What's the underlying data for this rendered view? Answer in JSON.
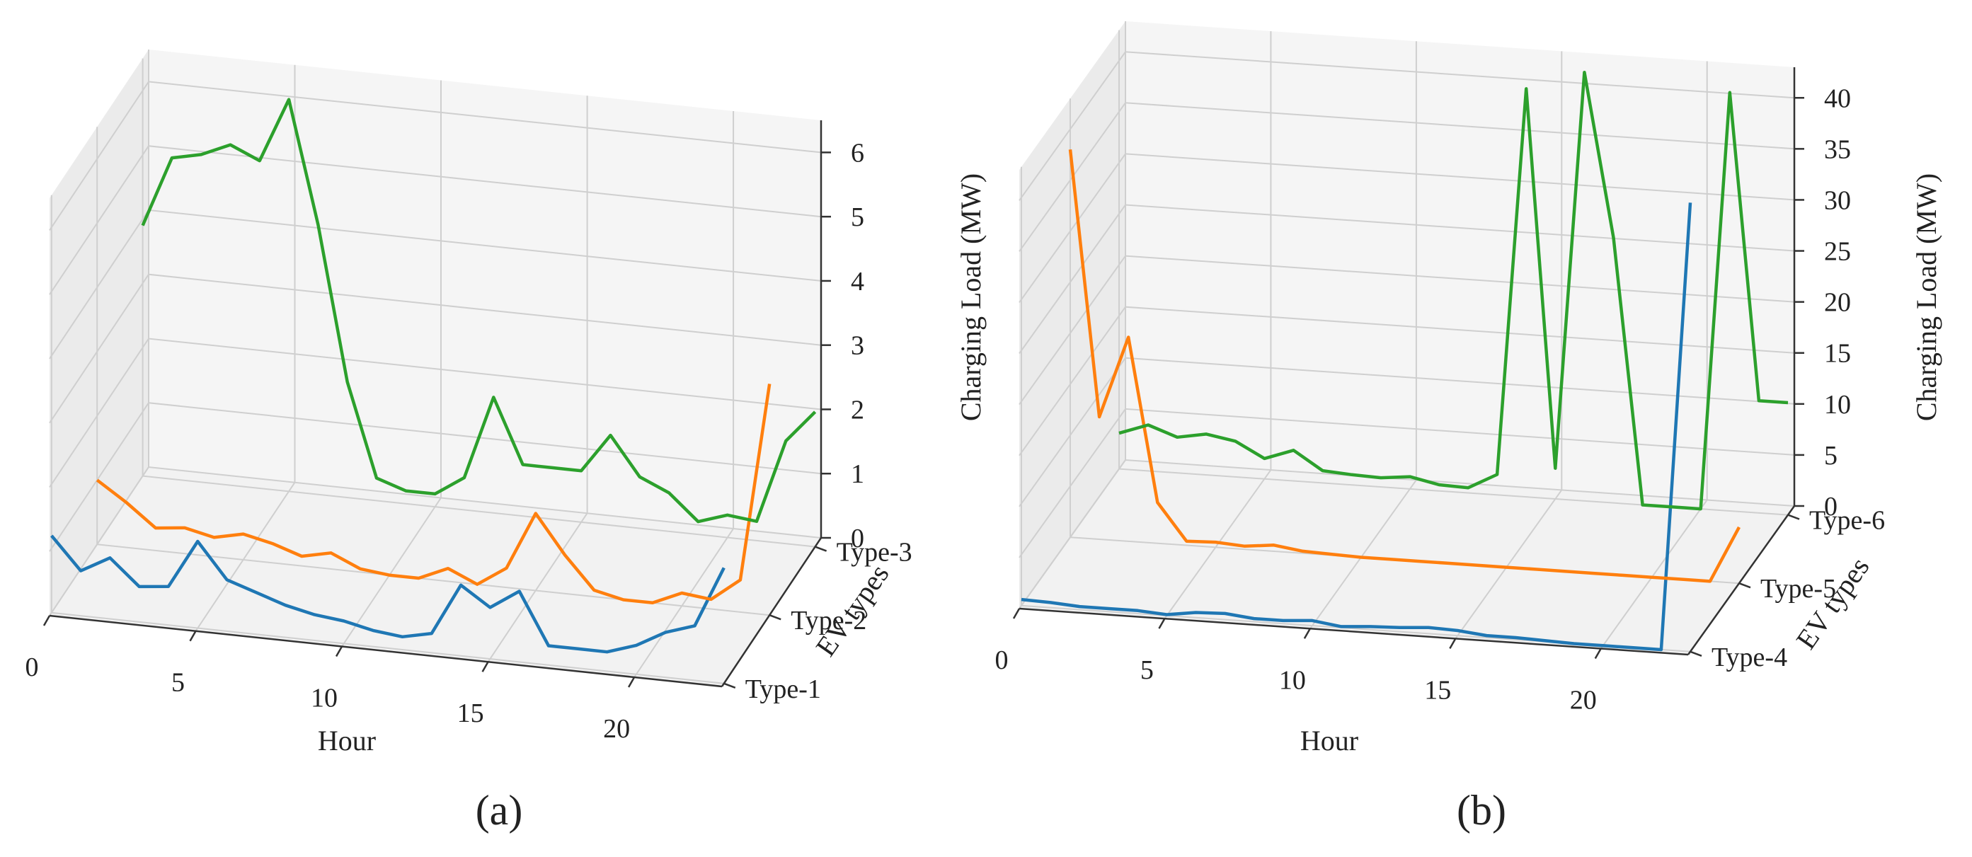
{
  "chart_data": [
    {
      "type": "line",
      "panel_label": "(a)",
      "xlabel": "Hour",
      "ylabel": "EV types",
      "zlabel": "Charging Load (MW)",
      "xticks": [
        "0",
        "5",
        "10",
        "15",
        "20"
      ],
      "xlim": [
        0,
        23
      ],
      "zticks": [
        "0",
        "1",
        "2",
        "3",
        "4",
        "5",
        "6"
      ],
      "zlim": [
        0,
        6.5
      ],
      "categories": [
        "Type-1",
        "Type-2",
        "Type-3"
      ],
      "series": [
        {
          "name": "Type-1",
          "color": "#1f77b4",
          "x": [
            0,
            1,
            2,
            3,
            4,
            5,
            6,
            7,
            8,
            9,
            10,
            11,
            12,
            13,
            14,
            15,
            16,
            17,
            18,
            19,
            20,
            21,
            22,
            23
          ],
          "values": [
            1.2,
            0.7,
            0.95,
            0.55,
            0.6,
            1.35,
            0.8,
            0.65,
            0.5,
            0.4,
            0.35,
            0.25,
            0.2,
            0.3,
            1.1,
            0.8,
            1.1,
            0.3,
            0.3,
            0.3,
            0.45,
            0.7,
            0.85,
            1.8
          ]
        },
        {
          "name": "Type-2",
          "color": "#ff7f0e",
          "x": [
            0,
            1,
            2,
            3,
            4,
            5,
            6,
            7,
            8,
            9,
            10,
            11,
            12,
            13,
            14,
            15,
            16,
            17,
            18,
            19,
            20,
            21,
            22,
            23
          ],
          "values": [
            1.0,
            0.7,
            0.35,
            0.4,
            0.3,
            0.4,
            0.3,
            0.15,
            0.25,
            0.05,
            0.0,
            0.0,
            0.2,
            0.0,
            0.3,
            1.2,
            0.6,
            0.1,
            0.0,
            0.0,
            0.2,
            0.15,
            0.5,
            3.6
          ]
        },
        {
          "name": "Type-3",
          "color": "#2ca02c",
          "x": [
            0,
            1,
            2,
            3,
            4,
            5,
            6,
            7,
            8,
            9,
            10,
            11,
            12,
            13,
            14,
            15,
            16,
            17,
            18,
            19,
            20,
            21,
            22,
            23
          ],
          "values": [
            3.9,
            5.0,
            5.1,
            5.3,
            5.1,
            6.1,
            4.2,
            1.8,
            0.35,
            0.2,
            0.2,
            0.5,
            1.8,
            0.8,
            0.8,
            0.8,
            1.4,
            0.8,
            0.6,
            0.2,
            0.35,
            0.3,
            1.6,
            2.1
          ]
        }
      ]
    },
    {
      "type": "line",
      "panel_label": "(b)",
      "xlabel": "Hour",
      "ylabel": "EV types",
      "zlabel": "Charging Load (MW)",
      "xticks": [
        "0",
        "5",
        "10",
        "15",
        "20"
      ],
      "xlim": [
        0,
        23
      ],
      "zticks": [
        "0",
        "5",
        "10",
        "15",
        "20",
        "25",
        "30",
        "35",
        "40"
      ],
      "zlim": [
        0,
        43
      ],
      "categories": [
        "Type-4",
        "Type-5",
        "Type-6"
      ],
      "series": [
        {
          "name": "Type-4",
          "color": "#1f77b4",
          "x": [
            0,
            1,
            2,
            3,
            4,
            5,
            6,
            7,
            8,
            9,
            10,
            11,
            12,
            13,
            14,
            15,
            16,
            17,
            18,
            19,
            20,
            21,
            22,
            23
          ],
          "values": [
            0.6,
            0.5,
            0.3,
            0.3,
            0.3,
            0.1,
            0.5,
            0.6,
            0.3,
            0.3,
            0.5,
            0.1,
            0.3,
            0.4,
            0.6,
            0.5,
            0.2,
            0.2,
            0.1,
            0.0,
            0.0,
            0.0,
            0.0,
            44.0
          ]
        },
        {
          "name": "Type-5",
          "color": "#ff7f0e",
          "x": [
            0,
            1,
            2,
            3,
            4,
            5,
            6,
            7,
            8,
            9,
            10,
            11,
            12,
            13,
            14,
            15,
            16,
            17,
            18,
            19,
            20,
            21,
            22,
            23
          ],
          "values": [
            38.0,
            12.0,
            20.0,
            4.0,
            0.4,
            0.5,
            0.3,
            0.6,
            0.2,
            0.1,
            0.0,
            0.0,
            0.0,
            0.0,
            0.0,
            0.0,
            0.0,
            0.0,
            0.0,
            0.0,
            0.0,
            0.0,
            0.0,
            5.5
          ]
        },
        {
          "name": "Type-6",
          "color": "#2ca02c",
          "x": [
            0,
            1,
            2,
            3,
            4,
            5,
            6,
            7,
            8,
            9,
            10,
            11,
            12,
            13,
            14,
            15,
            16,
            17,
            18,
            19,
            20,
            21,
            22,
            23
          ],
          "values": [
            3.5,
            4.5,
            3.5,
            4.0,
            3.5,
            2.0,
            3.0,
            1.2,
            1.0,
            0.9,
            1.2,
            0.6,
            0.5,
            2.0,
            40.0,
            3.0,
            42.0,
            26.0,
            0.0,
            0.0,
            0.0,
            41.0,
            11.0,
            11.0
          ]
        }
      ]
    }
  ]
}
